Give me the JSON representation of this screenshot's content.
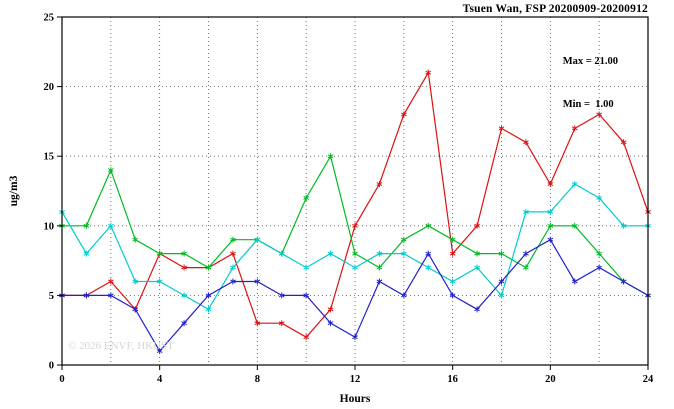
{
  "title": "Tsuen Wan, FSP 20200909-20200912",
  "annotations": {
    "max_label": "Max = 21.00",
    "min_label": "Min =  1.00"
  },
  "watermark": "© 2026 ENVF, HKUST",
  "chart_data": {
    "type": "line",
    "title": "Tsuen Wan, FSP 20200909-20200912",
    "xlabel": "Hours",
    "ylabel": "ug/m3",
    "xlim": [
      0,
      24
    ],
    "ylim": [
      0,
      25
    ],
    "xticks": [
      0,
      4,
      8,
      12,
      16,
      20,
      24
    ],
    "yticks": [
      0,
      5,
      10,
      15,
      20,
      25
    ],
    "grid_x": [
      2,
      4,
      6,
      8,
      10,
      12,
      14,
      16,
      18,
      20,
      22
    ],
    "grid_y": [
      5,
      10,
      15,
      20
    ],
    "grid": true,
    "legend_position": "none",
    "marker": "asterisk",
    "stats": {
      "max": 21.0,
      "min": 1.0
    },
    "x": [
      0,
      1,
      2,
      3,
      4,
      5,
      6,
      7,
      8,
      9,
      10,
      11,
      12,
      13,
      14,
      15,
      16,
      17,
      18,
      19,
      20,
      21,
      22,
      23,
      24
    ],
    "series": [
      {
        "name": "red",
        "color": "#dd1111",
        "values": [
          5,
          5,
          6,
          4,
          8,
          7,
          7,
          8,
          3,
          3,
          2,
          4,
          10,
          13,
          18,
          21,
          8,
          10,
          17,
          16,
          13,
          17,
          18,
          16,
          11
        ]
      },
      {
        "name": "green",
        "color": "#00bb22",
        "values": [
          10,
          10,
          14,
          9,
          8,
          8,
          7,
          9,
          9,
          8,
          12,
          15,
          8,
          7,
          9,
          10,
          9,
          8,
          8,
          7,
          10,
          10,
          8,
          6,
          5
        ]
      },
      {
        "name": "cyan",
        "color": "#00cccc",
        "values": [
          11,
          8,
          10,
          6,
          6,
          5,
          4,
          7,
          9,
          8,
          7,
          8,
          7,
          8,
          8,
          7,
          6,
          7,
          5,
          11,
          11,
          13,
          12,
          10,
          10
        ]
      },
      {
        "name": "blue",
        "color": "#2222cc",
        "values": [
          5,
          5,
          5,
          4,
          1,
          3,
          5,
          6,
          6,
          5,
          5,
          3,
          2,
          6,
          5,
          8,
          5,
          4,
          6,
          8,
          9,
          6,
          7,
          6,
          5
        ]
      }
    ]
  }
}
